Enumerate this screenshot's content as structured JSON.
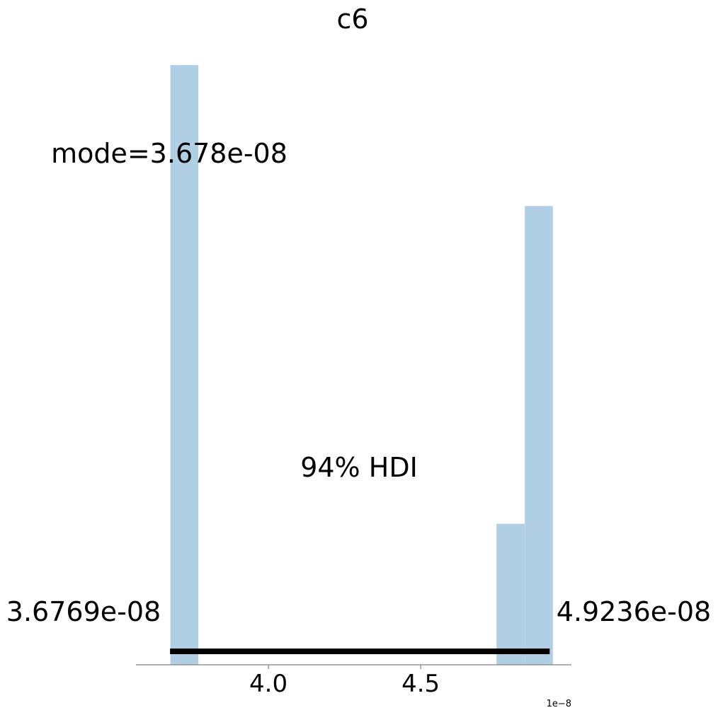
{
  "chart_data": {
    "type": "bar",
    "title": "c6",
    "xlabel": "",
    "ylabel": "",
    "axis_offset_label": "1e−8",
    "x_ticks": [
      {
        "value": 4.0,
        "label": "4.0"
      },
      {
        "value": 4.5,
        "label": "4.5"
      }
    ],
    "xlim": [
      3.565,
      4.995
    ],
    "ylim": [
      0,
      1
    ],
    "bins": [
      {
        "x0": 3.678,
        "x1": 3.77,
        "height": 1.0
      },
      {
        "x0": 4.749,
        "x1": 4.842,
        "height": 0.235
      },
      {
        "x0": 4.842,
        "x1": 4.934,
        "height": 0.765
      }
    ],
    "bar_color": "#b0cfe4",
    "hdi": {
      "label": "94% HDI",
      "lower": 3.6769,
      "upper": 4.9236,
      "lower_label": "3.6769e-08",
      "upper_label": "4.9236e-08"
    },
    "mode": {
      "value": 3.678,
      "label": "mode=3.678e-08"
    }
  }
}
